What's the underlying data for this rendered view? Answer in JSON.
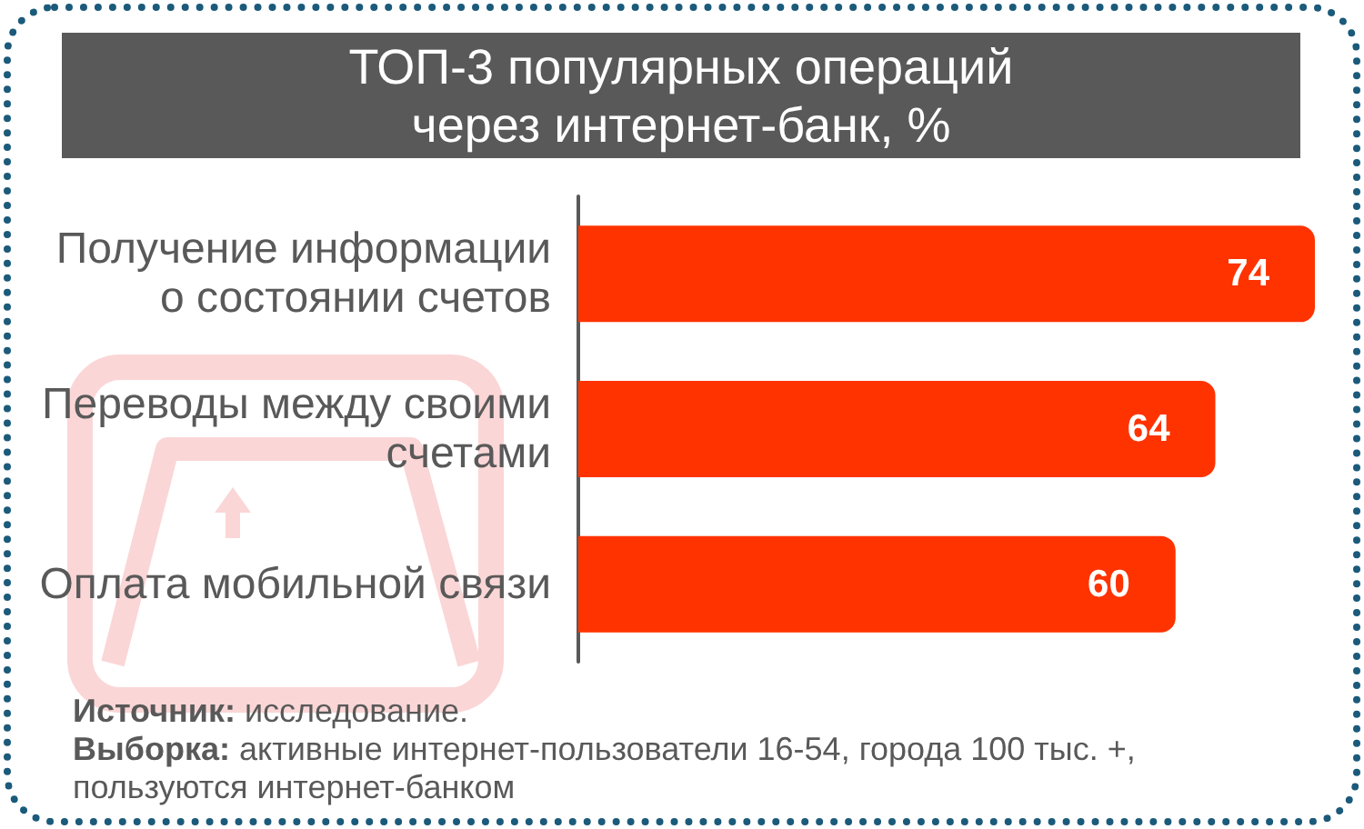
{
  "chart_data": {
    "type": "bar",
    "orientation": "horizontal",
    "title": "ТОП-3 популярных операций\nчерез интернет-банк, %",
    "categories": [
      "Получение информации\nо состоянии счетов",
      "Переводы между своими\nсчетами",
      "Оплата мобильной связи"
    ],
    "values": [
      74,
      64,
      60
    ],
    "color": "#ff3300",
    "data_labels": true,
    "annotations": [
      "Источник: исследование.",
      "Выборка: активные интернет-пользователи 16-54, города 100 тыс. +, пользуются интернет-банком"
    ]
  }
}
